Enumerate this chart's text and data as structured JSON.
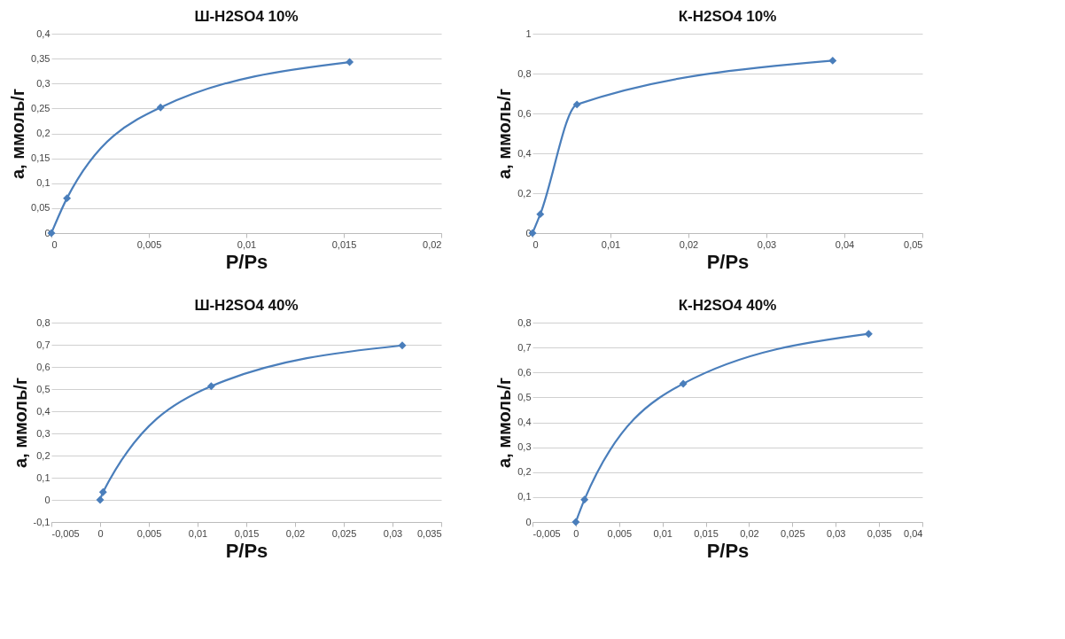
{
  "chart_data": [
    {
      "type": "line",
      "title": "Ш-H2SO4 10%",
      "xlabel": "P/Ps",
      "ylabel": "а, ммоль/г",
      "marker": "diamond",
      "line_style": "solid",
      "grid": "y",
      "x": [
        0,
        0.0008,
        0.0056,
        0.0153
      ],
      "series": [
        {
          "color": "#4a7ebb",
          "values": [
            0,
            0.07,
            0.252,
            0.343
          ]
        }
      ],
      "xlim": [
        0,
        0.02
      ],
      "xticks": [
        {
          "value": 0,
          "label": "0"
        },
        {
          "value": 0.005,
          "label": "0,005"
        },
        {
          "value": 0.01,
          "label": "0,01"
        },
        {
          "value": 0.015,
          "label": "0,015"
        },
        {
          "value": 0.02,
          "label": "0,02"
        }
      ],
      "ylim": [
        0,
        0.4
      ],
      "yticks": [
        {
          "value": 0,
          "label": "0"
        },
        {
          "value": 0.05,
          "label": "0,05"
        },
        {
          "value": 0.1,
          "label": "0,1"
        },
        {
          "value": 0.15,
          "label": "0,15"
        },
        {
          "value": 0.2,
          "label": "0,2"
        },
        {
          "value": 0.25,
          "label": "0,25"
        },
        {
          "value": 0.3,
          "label": "0,3"
        },
        {
          "value": 0.35,
          "label": "0,35"
        },
        {
          "value": 0.4,
          "label": "0,4"
        }
      ]
    },
    {
      "type": "line",
      "title": "К-H2SO4 10%",
      "xlabel": "P/Ps",
      "ylabel": "а, ммоль/г",
      "marker": "diamond",
      "line_style": "solid",
      "grid": "y",
      "x": [
        0,
        0.001,
        0.0057,
        0.0385
      ],
      "series": [
        {
          "color": "#4a7ebb",
          "values": [
            0,
            0.095,
            0.645,
            0.865
          ]
        }
      ],
      "xlim": [
        0,
        0.05
      ],
      "xticks": [
        {
          "value": 0,
          "label": "0"
        },
        {
          "value": 0.01,
          "label": "0,01"
        },
        {
          "value": 0.02,
          "label": "0,02"
        },
        {
          "value": 0.03,
          "label": "0,03"
        },
        {
          "value": 0.04,
          "label": "0,04"
        },
        {
          "value": 0.05,
          "label": "0,05"
        }
      ],
      "ylim": [
        0,
        1
      ],
      "yticks": [
        {
          "value": 0,
          "label": "0"
        },
        {
          "value": 0.2,
          "label": "0,2"
        },
        {
          "value": 0.4,
          "label": "0,4"
        },
        {
          "value": 0.6,
          "label": "0,6"
        },
        {
          "value": 0.8,
          "label": "0,8"
        },
        {
          "value": 1,
          "label": "1"
        }
      ]
    },
    {
      "type": "line",
      "title": "Ш-H2SO4 40%",
      "xlabel": "P/Ps",
      "ylabel": "а, ммоль/г",
      "marker": "diamond",
      "line_style": "solid",
      "grid": "y",
      "x": [
        0,
        0.0003,
        0.0114,
        0.031
      ],
      "series": [
        {
          "color": "#4a7ebb",
          "values": [
            0,
            0.035,
            0.513,
            0.697
          ]
        }
      ],
      "xlim": [
        -0.005,
        0.035
      ],
      "xticks": [
        {
          "value": -0.005,
          "label": "-0,005"
        },
        {
          "value": 0,
          "label": "0"
        },
        {
          "value": 0.005,
          "label": "0,005"
        },
        {
          "value": 0.01,
          "label": "0,01"
        },
        {
          "value": 0.015,
          "label": "0,015"
        },
        {
          "value": 0.02,
          "label": "0,02"
        },
        {
          "value": 0.025,
          "label": "0,025"
        },
        {
          "value": 0.03,
          "label": "0,03"
        },
        {
          "value": 0.035,
          "label": "0,035"
        }
      ],
      "ylim": [
        -0.1,
        0.8
      ],
      "yticks": [
        {
          "value": -0.1,
          "label": "-0,1"
        },
        {
          "value": 0,
          "label": "0"
        },
        {
          "value": 0.1,
          "label": "0,1"
        },
        {
          "value": 0.2,
          "label": "0,2"
        },
        {
          "value": 0.3,
          "label": "0,3"
        },
        {
          "value": 0.4,
          "label": "0,4"
        },
        {
          "value": 0.5,
          "label": "0,5"
        },
        {
          "value": 0.6,
          "label": "0,6"
        },
        {
          "value": 0.7,
          "label": "0,7"
        },
        {
          "value": 0.8,
          "label": "0,8"
        }
      ]
    },
    {
      "type": "line",
      "title": "К-H2SO4 40%",
      "xlabel": "P/Ps",
      "ylabel": "а, ммоль/г",
      "marker": "diamond",
      "line_style": "solid",
      "grid": "y",
      "x": [
        0,
        0.001,
        0.0124,
        0.0338
      ],
      "series": [
        {
          "color": "#4a7ebb",
          "values": [
            0,
            0.09,
            0.555,
            0.755
          ]
        }
      ],
      "xlim": [
        -0.005,
        0.04
      ],
      "xticks": [
        {
          "value": -0.005,
          "label": "-0,005"
        },
        {
          "value": 0,
          "label": "0"
        },
        {
          "value": 0.005,
          "label": "0,005"
        },
        {
          "value": 0.01,
          "label": "0,01"
        },
        {
          "value": 0.015,
          "label": "0,015"
        },
        {
          "value": 0.02,
          "label": "0,02"
        },
        {
          "value": 0.025,
          "label": "0,025"
        },
        {
          "value": 0.03,
          "label": "0,03"
        },
        {
          "value": 0.035,
          "label": "0,035"
        },
        {
          "value": 0.04,
          "label": "0,04"
        }
      ],
      "ylim": [
        0,
        0.8
      ],
      "yticks": [
        {
          "value": 0,
          "label": "0"
        },
        {
          "value": 0.1,
          "label": "0,1"
        },
        {
          "value": 0.2,
          "label": "0,2"
        },
        {
          "value": 0.3,
          "label": "0,3"
        },
        {
          "value": 0.4,
          "label": "0,4"
        },
        {
          "value": 0.5,
          "label": "0,5"
        },
        {
          "value": 0.6,
          "label": "0,6"
        },
        {
          "value": 0.7,
          "label": "0,7"
        },
        {
          "value": 0.8,
          "label": "0,8"
        }
      ]
    }
  ]
}
